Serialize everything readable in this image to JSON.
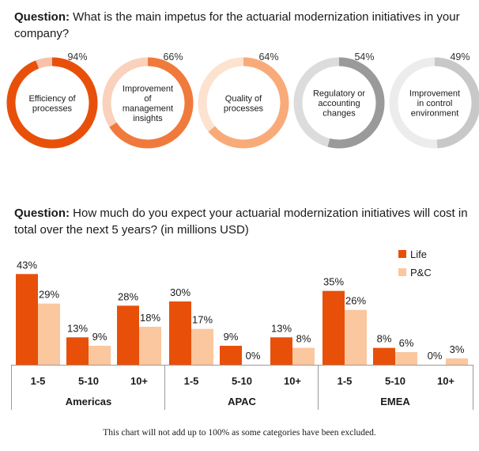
{
  "questions": {
    "q1": {
      "label": "Question:",
      "text": "What is the main impetus for the actuarial modernization initiatives in your company?"
    },
    "q2": {
      "label": "Question:",
      "text": "How much do you expect your actuarial modernization initiatives will cost in total over the next 5 years? (in millions USD)"
    }
  },
  "chart_data": [
    {
      "type": "donut",
      "items": [
        {
          "label": "Efficiency of processes",
          "lines": [
            "Efficiency of",
            "processes"
          ],
          "value": 94,
          "display": "94%",
          "color": "#e8500a",
          "track": "#e8500a"
        },
        {
          "label": "Improvement of management insights",
          "lines": [
            "Improvement",
            "of",
            "management",
            "insights"
          ],
          "value": 66,
          "display": "66%",
          "color": "#f07a3c",
          "track": "#f07a3c"
        },
        {
          "label": "Quality of processes",
          "lines": [
            "Quality of",
            "processes"
          ],
          "value": 64,
          "display": "64%",
          "color": "#f8ab78",
          "track": "#f8ab78"
        },
        {
          "label": "Regulatory or accounting changes",
          "lines": [
            "Regulatory or",
            "accounting",
            "changes"
          ],
          "value": 54,
          "display": "54%",
          "color": "#9a9a9a",
          "track": "#9a9a9a"
        },
        {
          "label": "Improvement in control environment",
          "lines": [
            "Improvement",
            "in control",
            "environment"
          ],
          "value": 49,
          "display": "49%",
          "color": "#c8c8c8",
          "track": "#c8c8c8"
        }
      ]
    },
    {
      "type": "bar",
      "groups": [
        {
          "name": "Americas",
          "categories": [
            "1-5",
            "5-10",
            "10+"
          ],
          "life": [
            43,
            13,
            28
          ],
          "pc": [
            29,
            9,
            18
          ]
        },
        {
          "name": "APAC",
          "categories": [
            "1-5",
            "5-10",
            "10+"
          ],
          "life": [
            30,
            9,
            13
          ],
          "pc": [
            17,
            0,
            8
          ]
        },
        {
          "name": "EMEA",
          "categories": [
            "1-5",
            "5-10",
            "10+"
          ],
          "life": [
            35,
            8,
            0
          ],
          "pc": [
            26,
            6,
            3
          ]
        }
      ],
      "series": [
        {
          "name": "Life",
          "color": "#e8500a"
        },
        {
          "name": "P&C",
          "color": "#fbc79f"
        }
      ],
      "ylim": [
        0,
        45
      ],
      "value_suffix": "%",
      "legend": "top-right"
    }
  ],
  "footnote": "This chart will not add up to 100% as some categories have been excluded."
}
